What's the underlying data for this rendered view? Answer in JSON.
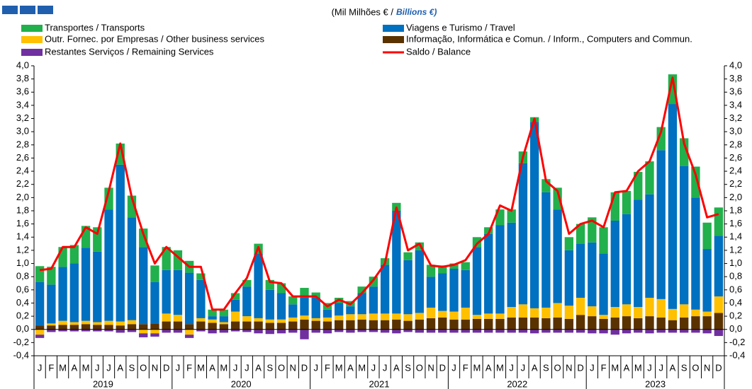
{
  "chart_data": {
    "type": "stacked_bar",
    "subtitle_pt": "(Mil Milhões  € /",
    "subtitle_en": "Billions €)",
    "categories": [
      "J",
      "F",
      "M",
      "A",
      "M",
      "J",
      "J",
      "A",
      "S",
      "O",
      "N",
      "D",
      "J",
      "F",
      "M",
      "A",
      "M",
      "J",
      "J",
      "A",
      "S",
      "O",
      "N",
      "D",
      "J",
      "F",
      "M",
      "A",
      "M",
      "J",
      "J",
      "A",
      "S",
      "O",
      "N",
      "D",
      "J",
      "F",
      "M",
      "A",
      "M",
      "J",
      "J",
      "A",
      "S",
      "O",
      "N",
      "D",
      "J",
      "F",
      "M",
      "A",
      "M",
      "J",
      "J",
      "A",
      "S",
      "O",
      "N",
      "D"
    ],
    "years": [
      "2019",
      "2020",
      "2021",
      "2022",
      "2023"
    ],
    "ylim": [
      -0.4,
      4.0
    ],
    "yticks": [
      {
        "value": -0.4,
        "label": "-0,4"
      },
      {
        "value": -0.2,
        "label": "-0,2"
      },
      {
        "value": 0,
        "label": "0,0"
      },
      {
        "value": 0.2,
        "label": "0,2"
      },
      {
        "value": 0.4,
        "label": "0,4"
      },
      {
        "value": 0.6,
        "label": "0,6"
      },
      {
        "value": 0.8,
        "label": "0,8"
      },
      {
        "value": 1,
        "label": "1,0"
      },
      {
        "value": 1.2,
        "label": "1,2"
      },
      {
        "value": 1.4,
        "label": "1,4"
      },
      {
        "value": 1.6,
        "label": "1,6"
      },
      {
        "value": 1.8,
        "label": "1,8"
      },
      {
        "value": 2,
        "label": "2,0"
      },
      {
        "value": 2.2,
        "label": "2,2"
      },
      {
        "value": 2.4,
        "label": "2,4"
      },
      {
        "value": 2.6,
        "label": "2,6"
      },
      {
        "value": 2.8,
        "label": "2,8"
      },
      {
        "value": 3,
        "label": "3,0"
      },
      {
        "value": 3.2,
        "label": "3,2"
      },
      {
        "value": 3.4,
        "label": "3,4"
      },
      {
        "value": 3.6,
        "label": "3,6"
      },
      {
        "value": 3.8,
        "label": "3,8"
      },
      {
        "value": 4,
        "label": "4,0"
      }
    ],
    "series": [
      {
        "name": "Informação, Informática e Comun. / Inform., Computers and Commun.",
        "color": "#5a3200",
        "values": [
          0.06,
          0.06,
          0.07,
          0.07,
          0.08,
          0.07,
          0.07,
          0.06,
          0.08,
          0.08,
          0.09,
          0.12,
          0.12,
          0.08,
          0.12,
          0.1,
          0.08,
          0.12,
          0.12,
          0.12,
          0.1,
          0.1,
          0.12,
          0.15,
          0.13,
          0.12,
          0.14,
          0.14,
          0.15,
          0.14,
          0.14,
          0.15,
          0.13,
          0.15,
          0.17,
          0.18,
          0.15,
          0.15,
          0.16,
          0.16,
          0.16,
          0.18,
          0.18,
          0.18,
          0.17,
          0.18,
          0.16,
          0.22,
          0.2,
          0.16,
          0.18,
          0.2,
          0.17,
          0.2,
          0.18,
          0.14,
          0.18,
          0.2,
          0.2,
          0.25
        ]
      },
      {
        "name": "Outr. Fornec. por Empresas  / Other business services",
        "color": "#ffc000",
        "values": [
          -0.08,
          0.03,
          0.06,
          0.04,
          0.05,
          0.04,
          0.06,
          0.06,
          0.06,
          -0.06,
          -0.06,
          0.12,
          0.1,
          -0.08,
          0.05,
          0.05,
          0.03,
          0.15,
          0.08,
          0.05,
          0.05,
          0.05,
          0.06,
          0.06,
          0.04,
          0.06,
          0.07,
          0.09,
          0.08,
          0.1,
          0.1,
          0.09,
          0.1,
          0.1,
          0.16,
          0.1,
          0.12,
          0.18,
          0.06,
          0.08,
          0.08,
          0.16,
          0.2,
          0.14,
          0.16,
          0.22,
          0.2,
          0.26,
          0.15,
          0.06,
          0.16,
          0.18,
          0.17,
          0.28,
          0.28,
          0.17,
          0.2,
          0.1,
          0.07,
          0.25
        ]
      },
      {
        "name": "Viagens e Turismo / Travel",
        "color": "#0070c0",
        "values": [
          0.66,
          0.59,
          0.82,
          0.89,
          1.11,
          1.07,
          1.69,
          2.38,
          1.56,
          1.17,
          0.63,
          0.66,
          0.68,
          0.78,
          0.58,
          0.05,
          0.09,
          0.18,
          0.45,
          0.98,
          0.45,
          0.4,
          0.2,
          0.27,
          0.31,
          0.12,
          0.19,
          0.12,
          0.32,
          0.41,
          0.74,
          1.56,
          0.82,
          0.95,
          0.47,
          0.57,
          0.65,
          0.57,
          1.03,
          1.21,
          1.34,
          1.28,
          2.14,
          2.83,
          1.75,
          1.42,
          0.84,
          0.82,
          0.97,
          0.93,
          1.31,
          1.37,
          1.63,
          1.57,
          2.26,
          3.11,
          2.1,
          1.7,
          0.95,
          0.92
        ]
      },
      {
        "name": "Transportes / Transports",
        "color": "#21b04b",
        "values": [
          0.24,
          0.27,
          0.3,
          0.28,
          0.33,
          0.37,
          0.33,
          0.32,
          0.33,
          0.28,
          0.25,
          0.35,
          0.3,
          0.18,
          0.1,
          0.1,
          0.1,
          0.1,
          0.1,
          0.15,
          0.15,
          0.15,
          0.12,
          0.15,
          0.08,
          0.1,
          0.08,
          0.08,
          0.1,
          0.15,
          0.1,
          0.12,
          0.12,
          0.12,
          0.18,
          0.12,
          0.08,
          0.12,
          0.15,
          0.1,
          0.24,
          0.2,
          0.18,
          0.07,
          0.2,
          0.33,
          0.2,
          0.3,
          0.38,
          0.4,
          0.43,
          0.35,
          0.42,
          0.5,
          0.35,
          0.45,
          0.42,
          0.47,
          0.4,
          0.43
        ]
      },
      {
        "name": "Restantes Serviços / Remaining Services",
        "color": "#7030a0",
        "values": [
          -0.05,
          -0.04,
          -0.03,
          -0.03,
          -0.03,
          -0.03,
          -0.03,
          -0.05,
          -0.04,
          -0.06,
          -0.05,
          -0.05,
          -0.05,
          -0.05,
          -0.03,
          -0.06,
          -0.05,
          -0.03,
          -0.04,
          -0.06,
          -0.07,
          -0.06,
          -0.05,
          -0.15,
          -0.05,
          -0.06,
          -0.04,
          -0.05,
          -0.04,
          -0.04,
          -0.05,
          -0.06,
          -0.04,
          -0.05,
          -0.05,
          -0.05,
          -0.05,
          -0.05,
          -0.05,
          -0.05,
          -0.05,
          -0.05,
          -0.05,
          -0.06,
          -0.05,
          -0.05,
          -0.05,
          -0.05,
          -0.06,
          -0.06,
          -0.08,
          -0.06,
          -0.05,
          -0.06,
          -0.05,
          -0.05,
          -0.05,
          -0.05,
          -0.06,
          -0.1
        ]
      },
      {
        "name": "Saldo / Balance",
        "color": "#ff0000",
        "type": "line",
        "values": [
          0.9,
          0.92,
          1.25,
          1.25,
          1.55,
          1.45,
          2.1,
          2.82,
          2.0,
          1.45,
          1.0,
          1.25,
          1.1,
          0.95,
          0.95,
          0.3,
          0.3,
          0.55,
          0.78,
          1.25,
          0.72,
          0.7,
          0.5,
          0.5,
          0.5,
          0.35,
          0.45,
          0.38,
          0.55,
          0.75,
          1.0,
          1.85,
          1.2,
          1.3,
          0.97,
          0.95,
          0.98,
          1.05,
          1.3,
          1.45,
          1.88,
          1.8,
          2.62,
          3.2,
          2.25,
          2.1,
          1.45,
          1.6,
          1.65,
          1.55,
          2.08,
          2.1,
          2.4,
          2.55,
          3.0,
          3.82,
          2.82,
          2.35,
          1.7,
          1.75
        ]
      }
    ]
  }
}
